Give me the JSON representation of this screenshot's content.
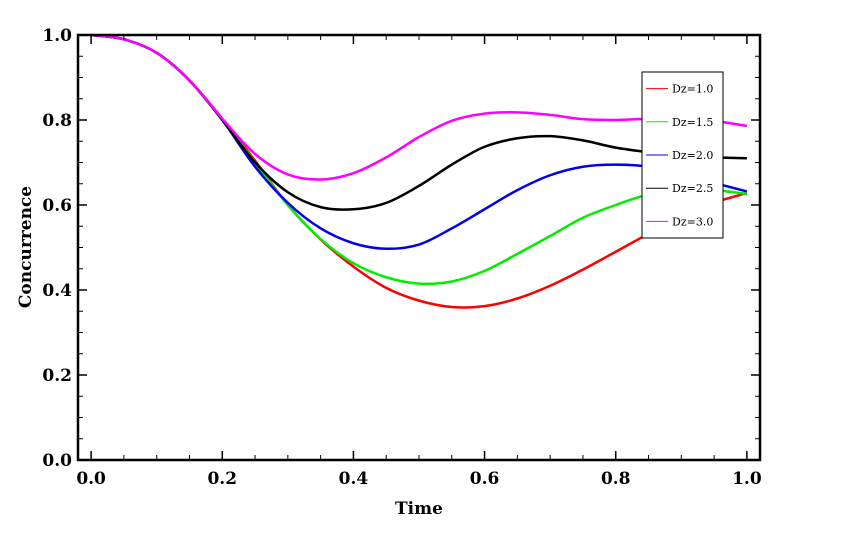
{
  "chart_data": {
    "type": "line",
    "title": "",
    "xlabel": "Time",
    "ylabel": "Concurrence",
    "xlim": [
      -0.02,
      1.02
    ],
    "ylim": [
      0.0,
      1.0
    ],
    "xticks": [
      0.0,
      0.2,
      0.4,
      0.6,
      0.8,
      1.0
    ],
    "xtick_labels": [
      "0.0",
      "0.2",
      "0.4",
      "0.6",
      "0.8",
      "1.0"
    ],
    "yticks": [
      0.0,
      0.2,
      0.4,
      0.6,
      0.8,
      1.0
    ],
    "ytick_labels": [
      "0.0",
      "0.2",
      "0.4",
      "0.6",
      "0.8",
      "1.0"
    ],
    "grid": false,
    "legend_position": "upper-right",
    "x": [
      0.0,
      0.05,
      0.1,
      0.15,
      0.2,
      0.25,
      0.3,
      0.35,
      0.4,
      0.45,
      0.5,
      0.55,
      0.6,
      0.65,
      0.7,
      0.75,
      0.8,
      0.85,
      0.9,
      0.95,
      1.0
    ],
    "series": [
      {
        "name": "Dz=1.0",
        "color": "#ff0000",
        "values": [
          1.0,
          0.99,
          0.958,
          0.893,
          0.803,
          0.704,
          0.6,
          0.519,
          0.455,
          0.405,
          0.375,
          0.36,
          0.362,
          0.38,
          0.41,
          0.448,
          0.49,
          0.532,
          0.57,
          0.605,
          0.628
        ]
      },
      {
        "name": "Dz=1.5",
        "color": "#00ee00",
        "values": [
          1.0,
          0.99,
          0.958,
          0.893,
          0.8,
          0.7,
          0.6,
          0.52,
          0.463,
          0.43,
          0.415,
          0.42,
          0.445,
          0.485,
          0.527,
          0.57,
          0.6,
          0.625,
          0.637,
          0.635,
          0.626
        ]
      },
      {
        "name": "Dz=2.0",
        "color": "#0000ee",
        "values": [
          1.0,
          0.99,
          0.958,
          0.893,
          0.8,
          0.69,
          0.605,
          0.545,
          0.51,
          0.497,
          0.507,
          0.545,
          0.59,
          0.635,
          0.67,
          0.69,
          0.695,
          0.69,
          0.673,
          0.652,
          0.632
        ]
      },
      {
        "name": "Dz=2.5",
        "color": "#000000",
        "values": [
          1.0,
          0.99,
          0.958,
          0.893,
          0.8,
          0.7,
          0.63,
          0.595,
          0.59,
          0.605,
          0.645,
          0.695,
          0.737,
          0.757,
          0.762,
          0.752,
          0.735,
          0.724,
          0.715,
          0.712,
          0.71
        ]
      },
      {
        "name": "Dz=3.0",
        "color": "#ff00ff",
        "values": [
          1.0,
          0.99,
          0.958,
          0.893,
          0.803,
          0.72,
          0.672,
          0.66,
          0.675,
          0.712,
          0.76,
          0.798,
          0.815,
          0.818,
          0.812,
          0.802,
          0.8,
          0.803,
          0.805,
          0.798,
          0.786
        ]
      }
    ]
  }
}
